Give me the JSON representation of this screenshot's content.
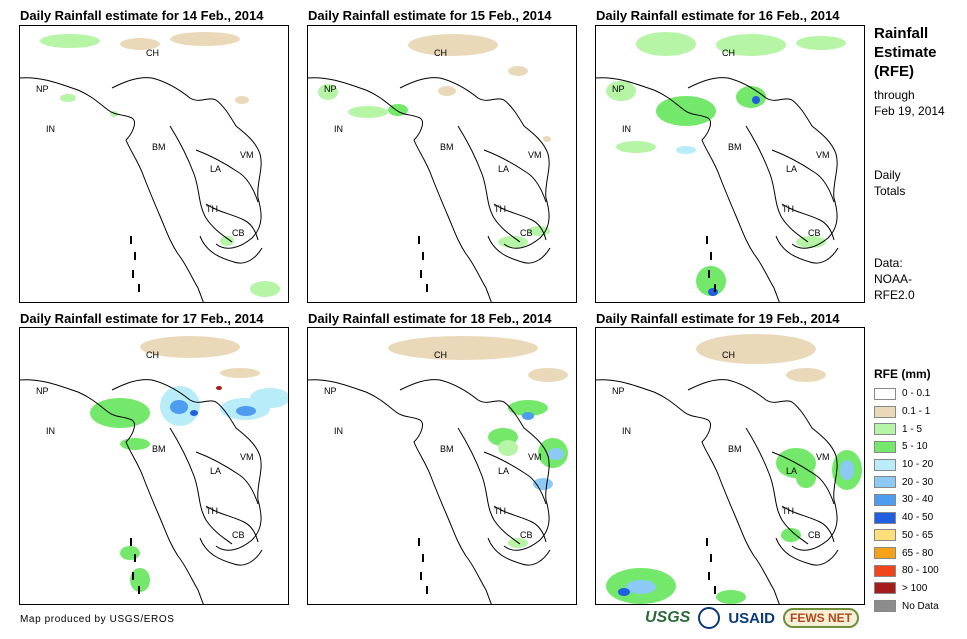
{
  "panels": [
    {
      "title": "Daily Rainfall estimate for 14 Feb., 2014"
    },
    {
      "title": "Daily Rainfall estimate for 15 Feb., 2014"
    },
    {
      "title": "Daily Rainfall estimate for 16 Feb., 2014"
    },
    {
      "title": "Daily Rainfall estimate for 17 Feb., 2014"
    },
    {
      "title": "Daily Rainfall estimate for 18 Feb., 2014"
    },
    {
      "title": "Daily Rainfall estimate for 19 Feb., 2014"
    }
  ],
  "country_labels": {
    "ch": "CH",
    "np": "NP",
    "in": "IN",
    "bm": "BM",
    "la": "LA",
    "vm": "VM",
    "th": "TH",
    "cb": "CB"
  },
  "sidebar": {
    "title_line1": "Rainfall",
    "title_line2": "Estimate",
    "title_line3": "(RFE)",
    "through_label": "through",
    "through_date": "Feb 19, 2014",
    "totals_line1": "Daily",
    "totals_line2": "Totals",
    "data_line1": "Data:",
    "data_line2": "NOAA-",
    "data_line3": "RFE2.0"
  },
  "legend": {
    "title": "RFE (mm)",
    "items": [
      {
        "label": "0 - 0.1",
        "color": "#ffffff"
      },
      {
        "label": "0.1 - 1",
        "color": "#ead9b9"
      },
      {
        "label": "1 - 5",
        "color": "#b6f5a6"
      },
      {
        "label": "5 - 10",
        "color": "#73e86a"
      },
      {
        "label": "10 - 20",
        "color": "#b8ecf8"
      },
      {
        "label": "20 - 30",
        "color": "#8ccaf5"
      },
      {
        "label": "30 - 40",
        "color": "#4d9cf0"
      },
      {
        "label": "40 - 50",
        "color": "#1f5fe0"
      },
      {
        "label": "50 - 65",
        "color": "#fbe07a"
      },
      {
        "label": "65 - 80",
        "color": "#f7a11a"
      },
      {
        "label": "80 - 100",
        "color": "#f0451a"
      },
      {
        "label": "> 100",
        "color": "#a61c1c"
      },
      {
        "label": "No Data",
        "color": "#8c8c8c"
      }
    ]
  },
  "footer": {
    "credit": "Map produced by USGS/EROS",
    "logo_usgs": "USGS",
    "logo_usaid": "USAID",
    "logo_fews": "FEWS NET"
  }
}
